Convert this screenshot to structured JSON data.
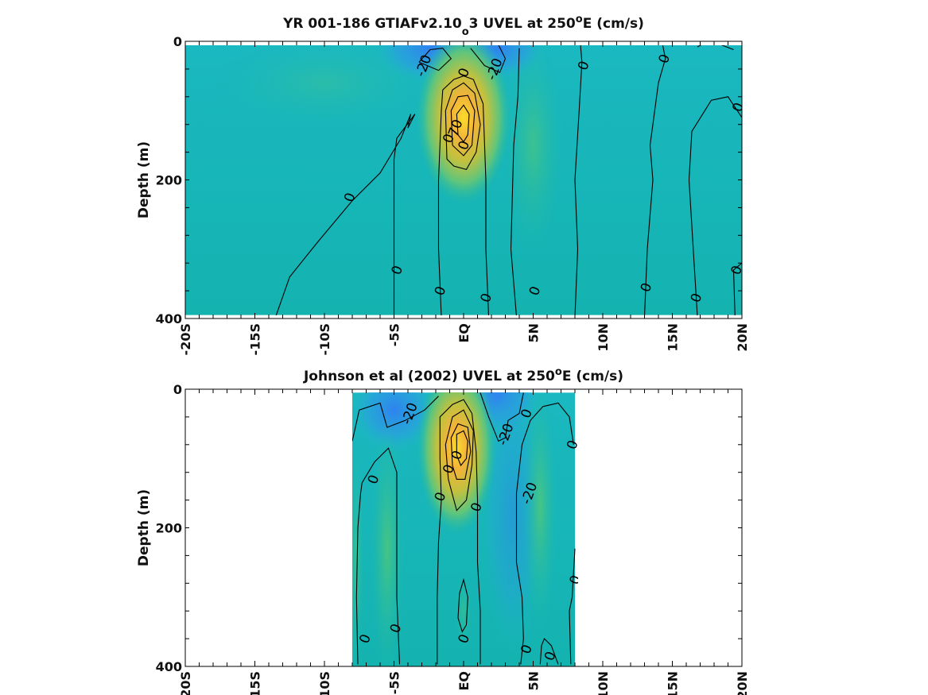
{
  "chart_data": [
    {
      "type": "heatmap",
      "title_main": "YR 001-186 GTIAFv2.10",
      "title_sub": "o",
      "title_rest": "3 UVEL at 250",
      "title_sup": "o",
      "title_end": "E (cm/s)",
      "ylabel": "Depth (m)",
      "xlim": [
        -20,
        20
      ],
      "ylim": [
        0,
        400
      ],
      "y_reversed": true,
      "x_ticks": [
        -20,
        -15,
        -10,
        -5,
        0,
        5,
        10,
        15,
        20
      ],
      "x_tick_labels": [
        "-20S",
        "-15S",
        "-10S",
        "-5S",
        "EQ",
        "5N",
        "10N",
        "15N",
        "20N"
      ],
      "y_ticks": [
        0,
        200,
        400
      ],
      "y_tick_labels": [
        "0",
        "200",
        "400"
      ],
      "data_extent": {
        "x": [
          -20,
          20
        ],
        "depth": [
          5,
          395
        ]
      },
      "features": [
        {
          "kind": "jet",
          "lat": 0,
          "depth": 100,
          "max_speed": 100
        },
        {
          "kind": "westward",
          "lat": -1.5,
          "depth": 20,
          "speed": -20
        },
        {
          "kind": "westward",
          "lat": 2.0,
          "depth": 20,
          "speed": -20
        }
      ],
      "contour_labels": [
        {
          "text": "-20",
          "lat": -2.9,
          "depth": 35
        },
        {
          "text": "0",
          "lat": 0.0,
          "depth": 45
        },
        {
          "text": "-20",
          "lat": 2.2,
          "depth": 40
        },
        {
          "text": "0",
          "lat": 8.6,
          "depth": 35
        },
        {
          "text": "0",
          "lat": 14.4,
          "depth": 25
        },
        {
          "text": "0",
          "lat": 19.7,
          "depth": 95
        },
        {
          "text": "0",
          "lat": -8.2,
          "depth": 225
        },
        {
          "text": "0",
          "lat": -4.8,
          "depth": 330
        },
        {
          "text": "0",
          "lat": -1.7,
          "depth": 360
        },
        {
          "text": "0",
          "lat": 1.6,
          "depth": 370
        },
        {
          "text": "0",
          "lat": 5.1,
          "depth": 360
        },
        {
          "text": "0",
          "lat": 13.1,
          "depth": 355
        },
        {
          "text": "0",
          "lat": 16.7,
          "depth": 370
        },
        {
          "text": "0",
          "lat": 19.6,
          "depth": 330
        },
        {
          "text": "0",
          "lat": -1.1,
          "depth": 140
        },
        {
          "text": "70",
          "lat": -0.6,
          "depth": 125
        },
        {
          "text": "0",
          "lat": 0.0,
          "depth": 150
        }
      ]
    },
    {
      "type": "heatmap",
      "title_main": "Johnson et al (2002) UVEL at 250",
      "title_sup": "o",
      "title_end": "E (cm/s)",
      "ylabel": "Depth (m)",
      "xlim": [
        -20,
        20
      ],
      "ylim": [
        0,
        400
      ],
      "y_reversed": true,
      "x_ticks": [
        -20,
        -15,
        -10,
        -5,
        0,
        5,
        10,
        15,
        20
      ],
      "x_tick_labels": [
        "-20S",
        "-15S",
        "-10S",
        "-5S",
        "EQ",
        "5N",
        "10N",
        "15N",
        "20N"
      ],
      "y_ticks": [
        0,
        200,
        400
      ],
      "y_tick_labels": [
        "0",
        "200",
        "400"
      ],
      "data_extent": {
        "x": [
          -8,
          8
        ],
        "depth": [
          5,
          400
        ]
      },
      "features": [
        {
          "kind": "jet",
          "lat": -0.5,
          "depth": 80,
          "max_speed": 100
        },
        {
          "kind": "westward",
          "lat": 2.0,
          "depth": 20,
          "speed": -30
        },
        {
          "kind": "westward",
          "lat": -4.0,
          "depth": 25,
          "speed": -20
        }
      ],
      "contour_labels": [
        {
          "text": "-20",
          "lat": -3.9,
          "depth": 35
        },
        {
          "text": "0",
          "lat": 4.5,
          "depth": 35
        },
        {
          "text": "-20",
          "lat": 3.0,
          "depth": 65
        },
        {
          "text": "0",
          "lat": 7.8,
          "depth": 80
        },
        {
          "text": "0",
          "lat": -6.5,
          "depth": 130
        },
        {
          "text": "0",
          "lat": -1.7,
          "depth": 155
        },
        {
          "text": "0",
          "lat": 0.9,
          "depth": 170
        },
        {
          "text": "-20",
          "lat": 4.7,
          "depth": 150
        },
        {
          "text": "0",
          "lat": 8.0,
          "depth": 275
        },
        {
          "text": "0",
          "lat": -7.1,
          "depth": 360
        },
        {
          "text": "0",
          "lat": -4.9,
          "depth": 345
        },
        {
          "text": "0",
          "lat": 0.0,
          "depth": 360
        },
        {
          "text": "0",
          "lat": 4.5,
          "depth": 375
        },
        {
          "text": "0",
          "lat": 6.2,
          "depth": 385
        },
        {
          "text": "0",
          "lat": -1.1,
          "depth": 115
        },
        {
          "text": "0",
          "lat": -0.5,
          "depth": 95
        }
      ]
    }
  ]
}
